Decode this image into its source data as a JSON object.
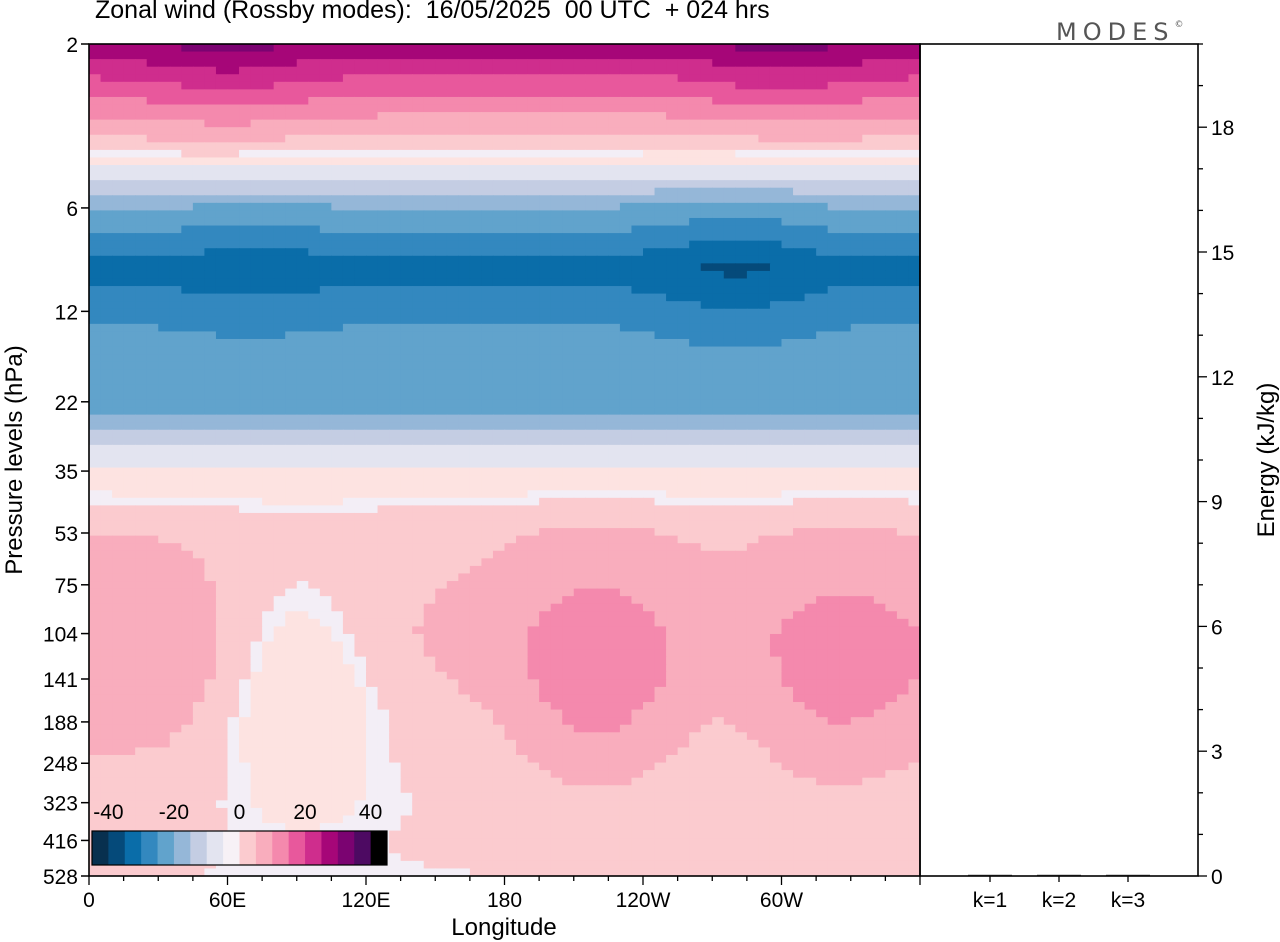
{
  "title": "Zonal wind (Rossby modes):  16/05/2025  00 UTC  + 024 hrs",
  "brand": "MODES",
  "brand_mark": "©",
  "colors": {
    "neg": [
      "#08304f",
      "#054a7a",
      "#0a6da9",
      "#3388bf",
      "#61a3cc",
      "#95b7d8",
      "#c4cde3",
      "#e3e4f0"
    ],
    "pos": [
      "#fde3e1",
      "#fbcbcf",
      "#f9adbd",
      "#f489ad",
      "#e8589c",
      "#cf2d8d",
      "#a60678",
      "#7b0371",
      "#4d0a62"
    ],
    "zero_band": "#f3eef6",
    "frame": "#000000"
  },
  "chart_data": [
    {
      "type": "heatmap",
      "title": "Zonal wind (Rossby modes):  16/05/2025  00 UTC  + 024 hrs",
      "xlabel": "Longitude",
      "ylabel": "Pressure levels (hPa)",
      "x_ticks": [
        "0",
        "60E",
        "120E",
        "180",
        "120W",
        "60W"
      ],
      "x_tick_deg": [
        0,
        60,
        120,
        180,
        240,
        300
      ],
      "xlim_deg": [
        0,
        360
      ],
      "y_ticks": [
        "2",
        "6",
        "12",
        "22",
        "35",
        "53",
        "75",
        "104",
        "141",
        "188",
        "248",
        "323",
        "416",
        "528"
      ],
      "colorbar": {
        "labels": [
          "-40",
          "-20",
          "0",
          "20",
          "40"
        ],
        "label_values": [
          -40,
          -20,
          0,
          20,
          40
        ],
        "min": -45,
        "step": 5,
        "n": 18
      },
      "wind_by_level": {
        "2": 28,
        "4": 2,
        "6": -20,
        "9": -32,
        "12": -26,
        "16": -22,
        "22": -24,
        "28": -12,
        "35": -4,
        "45": 1,
        "53": 4,
        "75": 5,
        "104": 6,
        "141": 5,
        "188": 3,
        "248": 2,
        "323": 1,
        "416": 1,
        "528": 0.5
      },
      "features": [
        {
          "lon": 220,
          "lev": 141,
          "value": 14
        },
        {
          "lon": 325,
          "lev": 141,
          "value": 13
        },
        {
          "lon": 35,
          "lev": 141,
          "value": 9
        },
        {
          "lon": 90,
          "lev": 141,
          "value": -4
        },
        {
          "lon": 70,
          "lev": 9,
          "value": -34
        },
        {
          "lon": 280,
          "lev": 9,
          "value": -36
        },
        {
          "lon": 60,
          "lev": 2,
          "value": 32
        },
        {
          "lon": 300,
          "lev": 2,
          "value": 32
        }
      ]
    },
    {
      "type": "bar",
      "title": "",
      "ylabel": "Energy (kJ/kg)",
      "categories": [
        "k=1",
        "k=2",
        "k=3"
      ],
      "values": [
        0.02,
        0.02,
        0.01
      ],
      "ylim": [
        0,
        20
      ],
      "y_ticks": [
        0,
        3,
        6,
        9,
        12,
        15,
        18
      ]
    }
  ]
}
